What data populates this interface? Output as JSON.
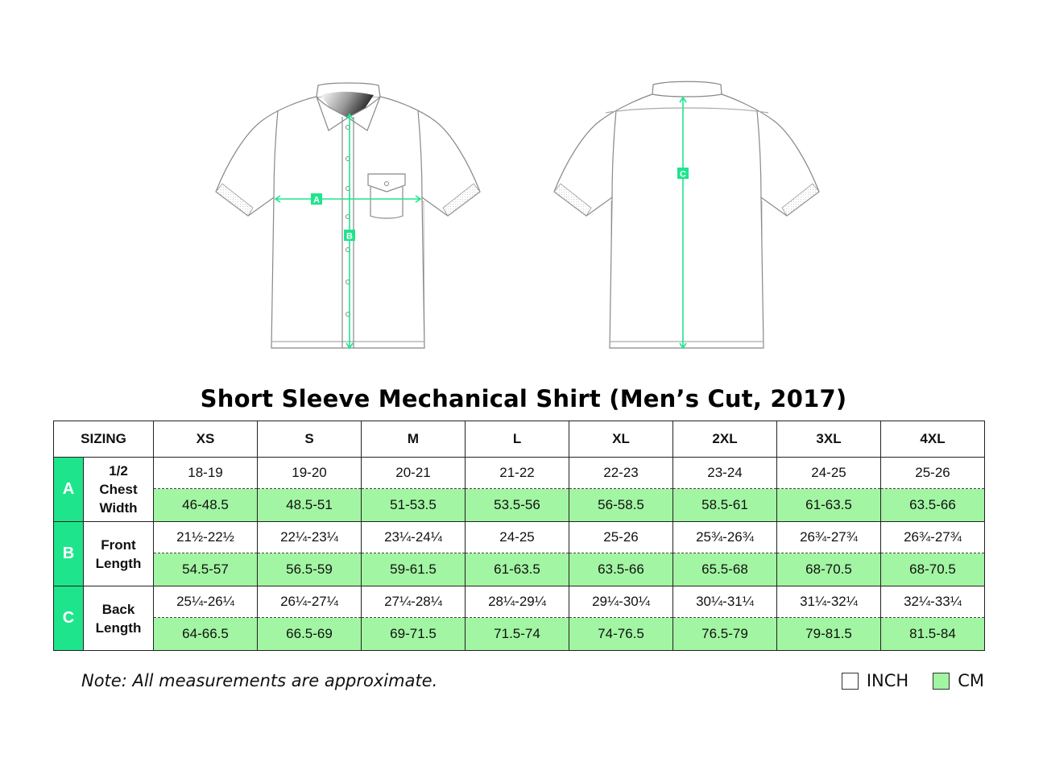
{
  "illustration": {
    "front_markers": [
      "A",
      "B"
    ],
    "back_markers": [
      "C"
    ],
    "accent_color": "#1ee58c"
  },
  "title": "Short Sleeve Mechanical Shirt (Men’s Cut, 2017)",
  "table": {
    "header_label": "SIZING",
    "sizes": [
      "XS",
      "S",
      "M",
      "L",
      "XL",
      "2XL",
      "3XL",
      "4XL"
    ],
    "rows": [
      {
        "letter": "A",
        "label": [
          "1/2",
          "Chest",
          "Width"
        ],
        "inch": [
          "18-19",
          "19-20",
          "20-21",
          "21-22",
          "22-23",
          "23-24",
          "24-25",
          "25-26"
        ],
        "cm": [
          "46-48.5",
          "48.5-51",
          "51-53.5",
          "53.5-56",
          "56-58.5",
          "58.5-61",
          "61-63.5",
          "63.5-66"
        ]
      },
      {
        "letter": "B",
        "label": [
          "Front",
          "Length"
        ],
        "inch": [
          "21½-22½",
          "22¼-23¼",
          "23¼-24¼",
          "24-25",
          "25-26",
          "25¾-26¾",
          "26¾-27¾",
          "26¾-27¾"
        ],
        "cm": [
          "54.5-57",
          "56.5-59",
          "59-61.5",
          "61-63.5",
          "63.5-66",
          "65.5-68",
          "68-70.5",
          "68-70.5"
        ]
      },
      {
        "letter": "C",
        "label": [
          "Back",
          "Length"
        ],
        "inch": [
          "25¼-26¼",
          "26¼-27¼",
          "27¼-28¼",
          "28¼-29¼",
          "29¼-30¼",
          "30¼-31¼",
          "31¼-32¼",
          "32¼-33¼"
        ],
        "cm": [
          "64-66.5",
          "66.5-69",
          "69-71.5",
          "71.5-74",
          "74-76.5",
          "76.5-79",
          "79-81.5",
          "81.5-84"
        ]
      }
    ]
  },
  "note": "Note: All measurements are approximate.",
  "legend": [
    {
      "label": "INCH",
      "color": "#ffffff"
    },
    {
      "label": "CM",
      "color": "#a2f5a2"
    }
  ]
}
